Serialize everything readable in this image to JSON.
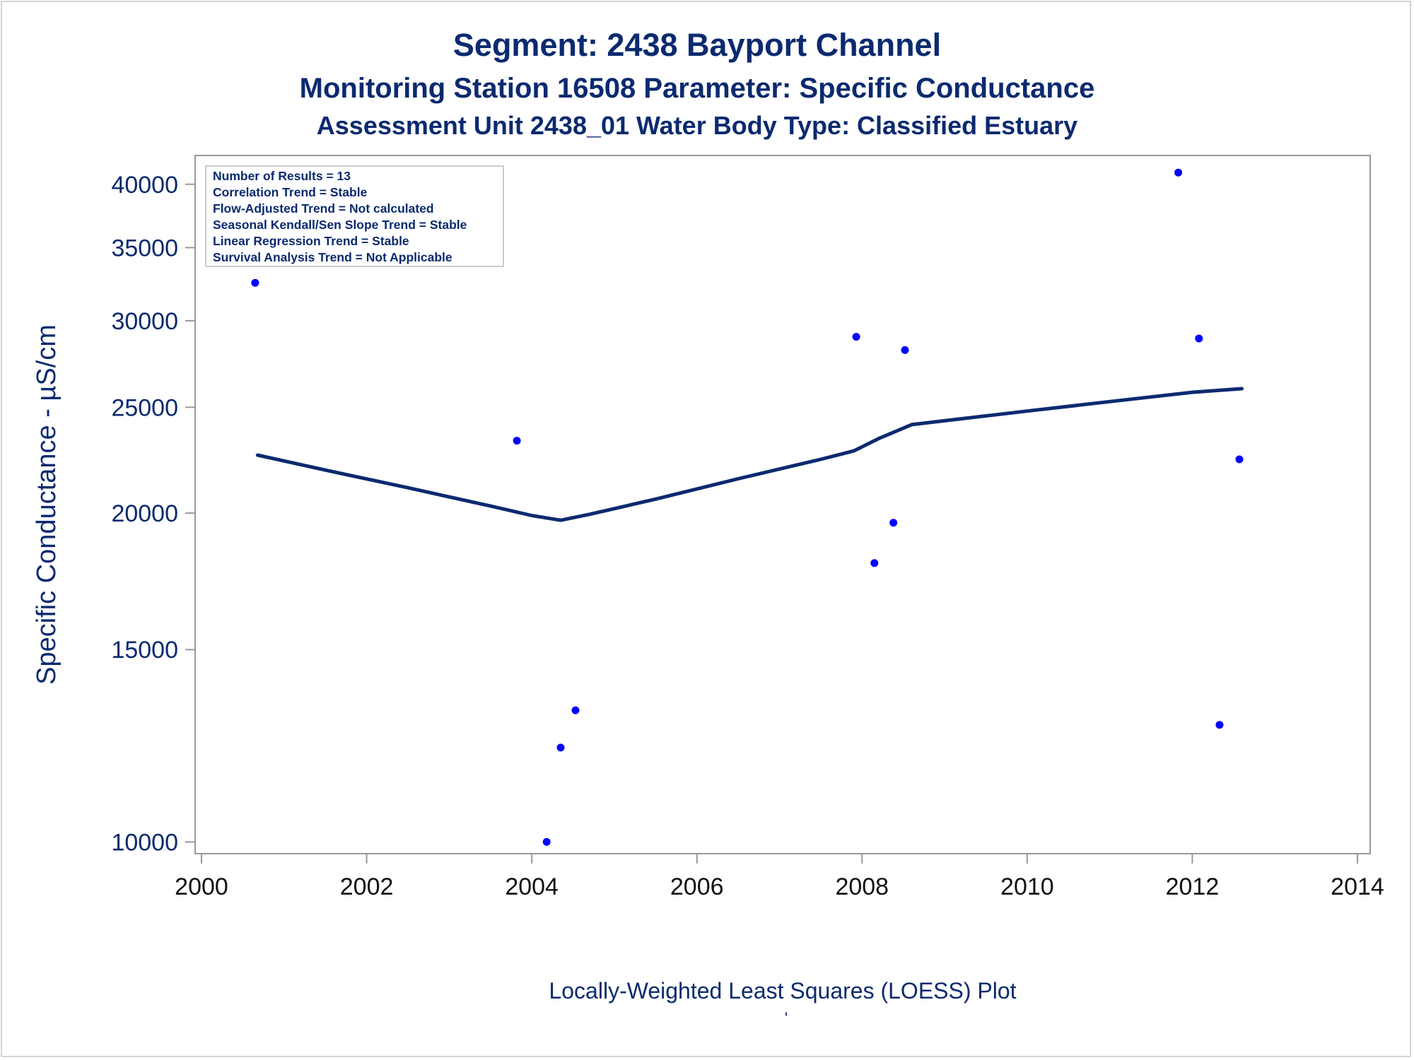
{
  "titles": {
    "line1": "Segment: 2438  Bayport Channel",
    "line2": "Monitoring Station 16508 Parameter: Specific Conductance",
    "line3": "Assessment Unit 2438_01   Water Body Type: Classified Estuary"
  },
  "footnote": "Locally-Weighted Least Squares (LOESS) Plot",
  "footnote_mark": "'",
  "stats_box": [
    "Number of Results = 13",
    "Correlation Trend = Stable",
    "Flow-Adjusted Trend = Not calculated",
    "Seasonal Kendall/Sen Slope Trend = Stable",
    "Linear Regression Trend = Stable",
    "Survival Analysis Trend = Not Applicable"
  ],
  "colors": {
    "text": "#0b2a6f",
    "points": "#0000ff",
    "loess_line": "#0b2a6f",
    "axis": "#999999"
  },
  "chart_data": {
    "type": "scatter",
    "ylabel": "Specific Conductance -  µS/cm",
    "xlabel": "",
    "yscale": "log",
    "xlim": [
      2000,
      2014
    ],
    "ylim": [
      9800,
      42000
    ],
    "xticks": [
      "2000",
      "2002",
      "2004",
      "2006",
      "2008",
      "2010",
      "2012",
      "2014"
    ],
    "yticks": [
      "10000",
      "15000",
      "20000",
      "25000",
      "30000",
      "35000",
      "40000"
    ],
    "series": [
      {
        "type": "scatter",
        "points": [
          {
            "x": 2000.65,
            "y": 32500
          },
          {
            "x": 2003.82,
            "y": 23300
          },
          {
            "x": 2004.18,
            "y": 10000
          },
          {
            "x": 2004.35,
            "y": 12200
          },
          {
            "x": 2004.53,
            "y": 13200
          },
          {
            "x": 2007.93,
            "y": 29000
          },
          {
            "x": 2008.15,
            "y": 18000
          },
          {
            "x": 2008.38,
            "y": 19600
          },
          {
            "x": 2008.52,
            "y": 28200
          },
          {
            "x": 2011.83,
            "y": 41000
          },
          {
            "x": 2012.08,
            "y": 28900
          },
          {
            "x": 2012.33,
            "y": 12800
          },
          {
            "x": 2012.57,
            "y": 22400
          }
        ]
      },
      {
        "type": "line",
        "points": [
          {
            "x": 2000.68,
            "y": 22600
          },
          {
            "x": 2001.5,
            "y": 21900
          },
          {
            "x": 2002.5,
            "y": 21100
          },
          {
            "x": 2003.5,
            "y": 20300
          },
          {
            "x": 2004.0,
            "y": 19900
          },
          {
            "x": 2004.35,
            "y": 19700
          },
          {
            "x": 2004.7,
            "y": 19950
          },
          {
            "x": 2005.5,
            "y": 20600
          },
          {
            "x": 2006.5,
            "y": 21500
          },
          {
            "x": 2007.5,
            "y": 22400
          },
          {
            "x": 2007.9,
            "y": 22800
          },
          {
            "x": 2008.2,
            "y": 23400
          },
          {
            "x": 2008.6,
            "y": 24100
          },
          {
            "x": 2009.2,
            "y": 24400
          },
          {
            "x": 2010.0,
            "y": 24800
          },
          {
            "x": 2011.0,
            "y": 25300
          },
          {
            "x": 2012.0,
            "y": 25800
          },
          {
            "x": 2012.6,
            "y": 26000
          }
        ]
      }
    ]
  }
}
